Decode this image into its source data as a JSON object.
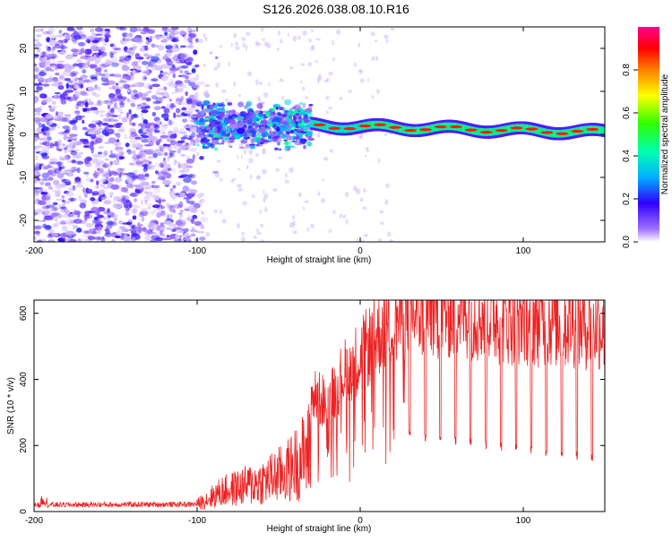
{
  "chart_data": [
    {
      "type": "heatmap",
      "title": "S126.2026.038.08.10.R16",
      "xlabel": "Height of straight line (km)",
      "ylabel": "Frequency (Hz)",
      "xlim": [
        -200,
        150
      ],
      "ylim": [
        -25,
        25
      ],
      "xticks": [
        -200,
        -100,
        0,
        100
      ],
      "yticks": [
        -20,
        -10,
        0,
        10,
        20
      ],
      "grid": false,
      "colorbar": {
        "label": "Normalized spectral amplitude",
        "range": [
          0,
          1
        ],
        "ticks": [
          0.0,
          0.2,
          0.4,
          0.6,
          0.8
        ],
        "colors": [
          "#ffffff",
          "#a070ff",
          "#3000ff",
          "#00b0ff",
          "#00ffb0",
          "#30ff00",
          "#ffff00",
          "#ff8000",
          "#ff0000",
          "#ff0090"
        ]
      },
      "features": [
        {
          "name": "noise-region",
          "x_range": [
            -200,
            -100
          ],
          "freq_range": [
            -25,
            25
          ],
          "amplitude": 0.1
        },
        {
          "name": "turbulent-band",
          "x_range": [
            -100,
            -30
          ],
          "freq_range": [
            -2,
            7
          ],
          "amplitude": 0.3
        },
        {
          "name": "stable-line",
          "x_range": [
            -30,
            150
          ],
          "freq": [
            2,
            0.5
          ],
          "amplitude": 0.95
        }
      ]
    },
    {
      "type": "line",
      "xlabel": "Height of straight line (km)",
      "ylabel": "SNR (10 * v/v)",
      "xlim": [
        -200,
        150
      ],
      "ylim": [
        0,
        640
      ],
      "xticks": [
        -200,
        -100,
        0,
        100
      ],
      "yticks": [
        0,
        200,
        400,
        600
      ],
      "series_color": "#ee2222",
      "profile": [
        [
          -200,
          20
        ],
        [
          -100,
          22
        ],
        [
          -85,
          60
        ],
        [
          -60,
          90
        ],
        [
          -45,
          120
        ],
        [
          -32,
          180
        ],
        [
          -30,
          350
        ],
        [
          -20,
          330
        ],
        [
          -10,
          420
        ],
        [
          0,
          470
        ],
        [
          15,
          560
        ],
        [
          30,
          600
        ],
        [
          60,
          610
        ],
        [
          80,
          590
        ],
        [
          100,
          585
        ],
        [
          150,
          560
        ]
      ],
      "dropouts": {
        "start": 30,
        "end": 150,
        "spacing": 9.3,
        "floor": [
          230,
          160
        ]
      }
    }
  ]
}
